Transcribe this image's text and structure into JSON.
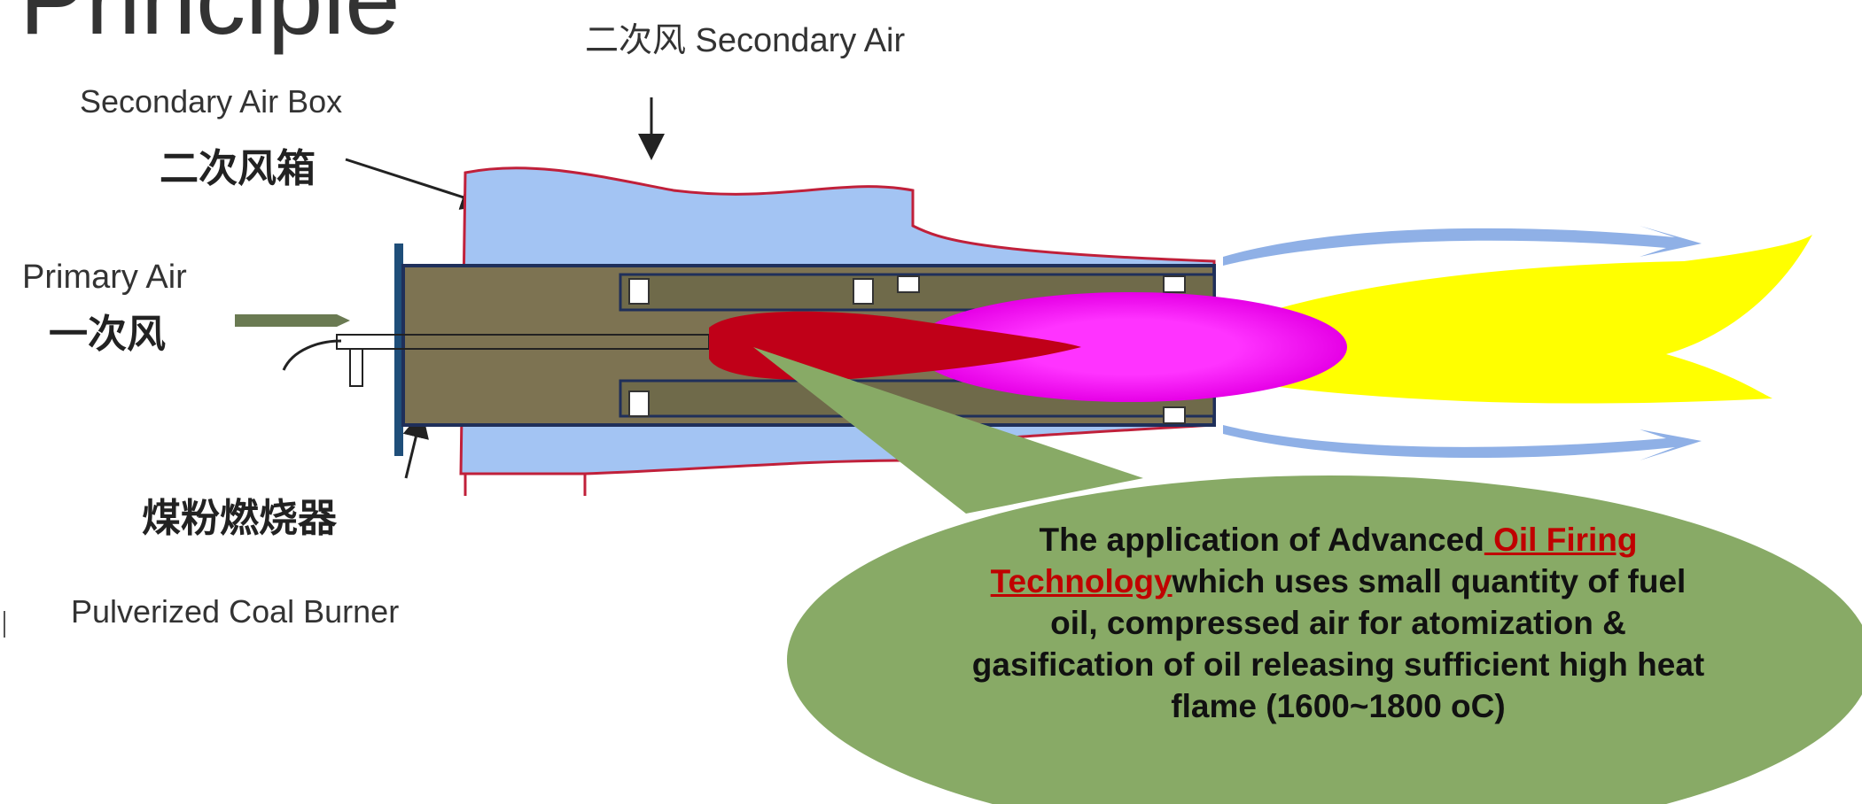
{
  "title": "Principle",
  "labels": {
    "secondary_air": "二次风 Secondary Air",
    "secondary_air_box_en": "Secondary Air Box",
    "secondary_air_box_cn": "二次风箱",
    "primary_air_en": "Primary Air",
    "primary_air_cn": "一次风",
    "burner_cn": "煤粉燃烧器",
    "burner_en": "Pulverized Coal Burner"
  },
  "callout": {
    "before": "The application of Advanced",
    "link": " Oil Firing Technology",
    "after": "which uses small quantity of fuel oil, compressed air for atomization & gasification of oil releasing sufficient high heat flame (1600~1800 oC)"
  }
}
